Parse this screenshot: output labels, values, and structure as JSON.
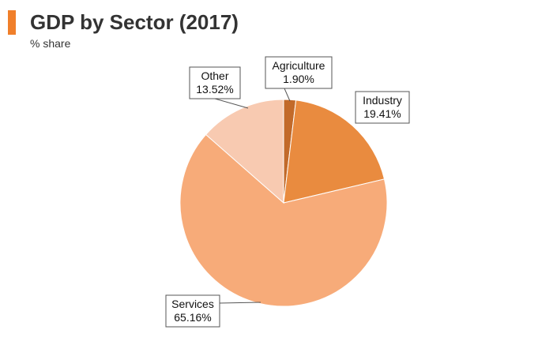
{
  "header": {
    "title": "GDP by Sector (2017)",
    "subtitle": "% share"
  },
  "colors": {
    "accent": "#f07f2a"
  },
  "chart_data": {
    "type": "pie",
    "title": "GDP by Sector (2017)",
    "subtitle": "% share",
    "legend": "none",
    "start": "12 o'clock, clockwise",
    "slices": [
      {
        "label": "Agriculture",
        "value": 1.9,
        "value_label": "1.90%",
        "color": "#c26a2a"
      },
      {
        "label": "Industry",
        "value": 19.41,
        "value_label": "19.41%",
        "color": "#e98b3f"
      },
      {
        "label": "Services",
        "value": 65.16,
        "value_label": "65.16%",
        "color": "#f7ab79"
      },
      {
        "label": "Other",
        "value": 13.52,
        "value_label": "13.52%",
        "color": "#f8cab1"
      }
    ]
  }
}
